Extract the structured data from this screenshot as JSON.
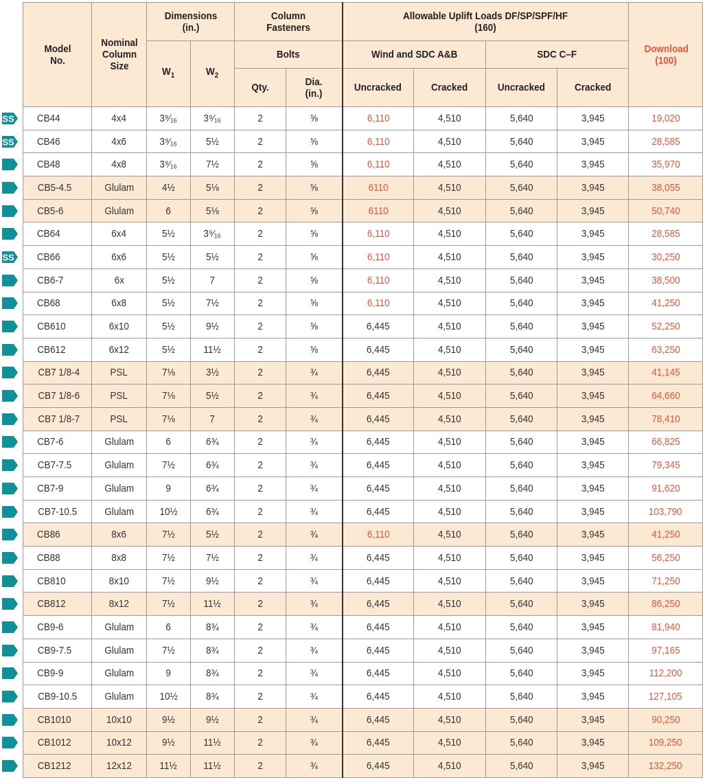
{
  "colors": {
    "header_bg": "#fbe9d3",
    "highlight_row": "#fbe9d3",
    "accent_red": "#e8553a",
    "icon_teal": "#10919a"
  },
  "header": {
    "model": "Model No.",
    "nominal": "Nominal Column Size",
    "dimensions": "Dimensions (in.)",
    "w1": "W",
    "w1_sub": "1",
    "w2": "W",
    "w2_sub": "2",
    "fasteners": "Column Fasteners",
    "bolts": "Bolts",
    "qty": "Qty.",
    "dia": "Dia. (in.)",
    "uplift": "Allowable Uplift Loads DF/SP/SPF/HF (160)",
    "wind": "Wind and SDC A&B",
    "sdc": "SDC C–F",
    "uncracked1": "Uncracked",
    "cracked1": "Cracked",
    "uncracked2": "Uncracked",
    "cracked2": "Cracked",
    "download": "Download (100)"
  },
  "rows": [
    {
      "icon": "ss",
      "model": "CB44",
      "size": "4x4",
      "w1": "3⁹⁄₁₆",
      "w2": "3⁹⁄₁₆",
      "qty": "2",
      "dia": "⅝",
      "wu": "6,110",
      "wc": "4,510",
      "su": "5,640",
      "sc": "3,945",
      "dl": "19,020",
      "hl": false,
      "red_wu": true
    },
    {
      "icon": "ss",
      "model": "CB46",
      "size": "4x6",
      "w1": "3⁹⁄₁₆",
      "w2": "5½",
      "qty": "2",
      "dia": "⅝",
      "wu": "6,110",
      "wc": "4,510",
      "su": "5,640",
      "sc": "3,945",
      "dl": "28,585",
      "hl": false,
      "red_wu": true
    },
    {
      "icon": "arrow",
      "model": "CB48",
      "size": "4x8",
      "w1": "3⁹⁄₁₆",
      "w2": "7½",
      "qty": "2",
      "dia": "⅝",
      "wu": "6,110",
      "wc": "4,510",
      "su": "5,640",
      "sc": "3,945",
      "dl": "35,970",
      "hl": false,
      "red_wu": true
    },
    {
      "icon": "arrow",
      "model": "CB5-4.5",
      "size": "Glulam",
      "w1": "4½",
      "w2": "5⅛",
      "qty": "2",
      "dia": "⅝",
      "wu": "6110",
      "wc": "4,510",
      "su": "5,640",
      "sc": "3,945",
      "dl": "38,055",
      "hl": true,
      "red_wu": true
    },
    {
      "icon": "arrow",
      "model": "CB5-6",
      "size": "Glulam",
      "w1": "6",
      "w2": "5⅛",
      "qty": "2",
      "dia": "⅝",
      "wu": "6110",
      "wc": "4,510",
      "su": "5,640",
      "sc": "3,945",
      "dl": "50,740",
      "hl": true,
      "red_wu": true
    },
    {
      "icon": "arrow",
      "model": "CB64",
      "size": "6x4",
      "w1": "5½",
      "w2": "3⁹⁄₁₆",
      "qty": "2",
      "dia": "⅝",
      "wu": "6,110",
      "wc": "4,510",
      "su": "5,640",
      "sc": "3,945",
      "dl": "28,585",
      "hl": false,
      "red_wu": true
    },
    {
      "icon": "ss",
      "model": "CB66",
      "size": "6x6",
      "w1": "5½",
      "w2": "5½",
      "qty": "2",
      "dia": "⅝",
      "wu": "6,110",
      "wc": "4,510",
      "su": "5,640",
      "sc": "3,945",
      "dl": "30,250",
      "hl": false,
      "red_wu": true
    },
    {
      "icon": "arrow",
      "model": "CB6-7",
      "size": "6x",
      "w1": "5½",
      "w2": "7",
      "qty": "2",
      "dia": "⅝",
      "wu": "6,110",
      "wc": "4,510",
      "su": "5,640",
      "sc": "3,945",
      "dl": "38,500",
      "hl": false,
      "red_wu": true
    },
    {
      "icon": "arrow",
      "model": "CB68",
      "size": "6x8",
      "w1": "5½",
      "w2": "7½",
      "qty": "2",
      "dia": "⅝",
      "wu": "6,110",
      "wc": "4,510",
      "su": "5,640",
      "sc": "3,945",
      "dl": "41,250",
      "hl": false,
      "red_wu": true
    },
    {
      "icon": "arrow",
      "model": "CB610",
      "size": "6x10",
      "w1": "5½",
      "w2": "9½",
      "qty": "2",
      "dia": "⅝",
      "wu": "6,445",
      "wc": "4,510",
      "su": "5,640",
      "sc": "3,945",
      "dl": "52,250",
      "hl": false,
      "red_wu": false
    },
    {
      "icon": "arrow",
      "model": "CB612",
      "size": "6x12",
      "w1": "5½",
      "w2": "11½",
      "qty": "2",
      "dia": "⅝",
      "wu": "6,445",
      "wc": "4,510",
      "su": "5,640",
      "sc": "3,945",
      "dl": "63,250",
      "hl": false,
      "red_wu": false
    },
    {
      "icon": "arrow",
      "model": "CB7 1/8-4",
      "size": "PSL",
      "w1": "7⅛",
      "w2": "3½",
      "qty": "2",
      "dia": "¾",
      "wu": "6,445",
      "wc": "4,510",
      "su": "5,640",
      "sc": "3,945",
      "dl": "41,145",
      "hl": true,
      "red_wu": false
    },
    {
      "icon": "arrow",
      "model": "CB7 1/8-6",
      "size": "PSL",
      "w1": "7⅛",
      "w2": "5½",
      "qty": "2",
      "dia": "¾",
      "wu": "6,445",
      "wc": "4,510",
      "su": "5,640",
      "sc": "3,945",
      "dl": "64,660",
      "hl": true,
      "red_wu": false
    },
    {
      "icon": "arrow",
      "model": "CB7 1/8-7",
      "size": "PSL",
      "w1": "7⅛",
      "w2": "7",
      "qty": "2",
      "dia": "¾",
      "wu": "6,445",
      "wc": "4,510",
      "su": "5,640",
      "sc": "3,945",
      "dl": "78,410",
      "hl": true,
      "red_wu": false
    },
    {
      "icon": "arrow",
      "model": "CB7-6",
      "size": "Glulam",
      "w1": "6",
      "w2": "6¾",
      "qty": "2",
      "dia": "¾",
      "wu": "6,445",
      "wc": "4,510",
      "su": "5,640",
      "sc": "3,945",
      "dl": "66,825",
      "hl": false,
      "red_wu": false
    },
    {
      "icon": "arrow",
      "model": "CB7-7.5",
      "size": "Glulam",
      "w1": "7½",
      "w2": "6¾",
      "qty": "2",
      "dia": "¾",
      "wu": "6,445",
      "wc": "4,510",
      "su": "5,640",
      "sc": "3,945",
      "dl": "79,345",
      "hl": false,
      "red_wu": false
    },
    {
      "icon": "arrow",
      "model": "CB7-9",
      "size": "Glulam",
      "w1": "9",
      "w2": "6¾",
      "qty": "2",
      "dia": "¾",
      "wu": "6,445",
      "wc": "4,510",
      "su": "5,640",
      "sc": "3,945",
      "dl": "91,620",
      "hl": false,
      "red_wu": false
    },
    {
      "icon": "arrow",
      "model": "CB7-10.5",
      "size": "Glulam",
      "w1": "10½",
      "w2": "6¾",
      "qty": "2",
      "dia": "¾",
      "wu": "6,445",
      "wc": "4,510",
      "su": "5,640",
      "sc": "3,945",
      "dl": "103,790",
      "hl": false,
      "red_wu": false
    },
    {
      "icon": "arrow",
      "model": "CB86",
      "size": "8x6",
      "w1": "7½",
      "w2": "5½",
      "qty": "2",
      "dia": "¾",
      "wu": "6,110",
      "wc": "4,510",
      "su": "5,640",
      "sc": "3,945",
      "dl": "41,250",
      "hl": true,
      "red_wu": true
    },
    {
      "icon": "arrow",
      "model": "CB88",
      "size": "8x8",
      "w1": "7½",
      "w2": "7½",
      "qty": "2",
      "dia": "¾",
      "wu": "6,445",
      "wc": "4,510",
      "su": "5,640",
      "sc": "3,945",
      "dl": "56,250",
      "hl": false,
      "red_wu": false
    },
    {
      "icon": "arrow",
      "model": "CB810",
      "size": "8x10",
      "w1": "7½",
      "w2": "9½",
      "qty": "2",
      "dia": "¾",
      "wu": "6,445",
      "wc": "4,510",
      "su": "5,640",
      "sc": "3,945",
      "dl": "71,250",
      "hl": false,
      "red_wu": false
    },
    {
      "icon": "arrow",
      "model": "CB812",
      "size": "8x12",
      "w1": "7½",
      "w2": "11½",
      "qty": "2",
      "dia": "¾",
      "wu": "6,445",
      "wc": "4,510",
      "su": "5,640",
      "sc": "3,945",
      "dl": "86,250",
      "hl": true,
      "red_wu": false
    },
    {
      "icon": "arrow",
      "model": "CB9-6",
      "size": "Glulam",
      "w1": "6",
      "w2": "8¾",
      "qty": "2",
      "dia": "¾",
      "wu": "6,445",
      "wc": "4,510",
      "su": "5,640",
      "sc": "3,945",
      "dl": "81,940",
      "hl": false,
      "red_wu": false
    },
    {
      "icon": "arrow",
      "model": "CB9-7.5",
      "size": "Glulam",
      "w1": "7½",
      "w2": "8¾",
      "qty": "2",
      "dia": "¾",
      "wu": "6,445",
      "wc": "4,510",
      "su": "5,640",
      "sc": "3,945",
      "dl": "97,165",
      "hl": false,
      "red_wu": false
    },
    {
      "icon": "arrow",
      "model": "CB9-9",
      "size": "Glulam",
      "w1": "9",
      "w2": "8¾",
      "qty": "2",
      "dia": "¾",
      "wu": "6,445",
      "wc": "4,510",
      "su": "5,640",
      "sc": "3,945",
      "dl": "112,200",
      "hl": false,
      "red_wu": false
    },
    {
      "icon": "arrow",
      "model": "CB9-10.5",
      "size": "Glulam",
      "w1": "10½",
      "w2": "8¾",
      "qty": "2",
      "dia": "¾",
      "wu": "6,445",
      "wc": "4,510",
      "su": "5,640",
      "sc": "3,945",
      "dl": "127,105",
      "hl": false,
      "red_wu": false
    },
    {
      "icon": "arrow",
      "model": "CB1010",
      "size": "10x10",
      "w1": "9½",
      "w2": "9½",
      "qty": "2",
      "dia": "¾",
      "wu": "6,445",
      "wc": "4,510",
      "su": "5,640",
      "sc": "3,945",
      "dl": "90,250",
      "hl": true,
      "red_wu": false
    },
    {
      "icon": "arrow",
      "model": "CB1012",
      "size": "10x12",
      "w1": "9½",
      "w2": "11½",
      "qty": "2",
      "dia": "¾",
      "wu": "6,445",
      "wc": "4,510",
      "su": "5,640",
      "sc": "3,945",
      "dl": "109,250",
      "hl": true,
      "red_wu": false
    },
    {
      "icon": "arrow",
      "model": "CB1212",
      "size": "12x12",
      "w1": "11½",
      "w2": "11½",
      "qty": "2",
      "dia": "¾",
      "wu": "6,445",
      "wc": "4,510",
      "su": "5,640",
      "sc": "3,945",
      "dl": "132,250",
      "hl": true,
      "red_wu": false
    }
  ]
}
